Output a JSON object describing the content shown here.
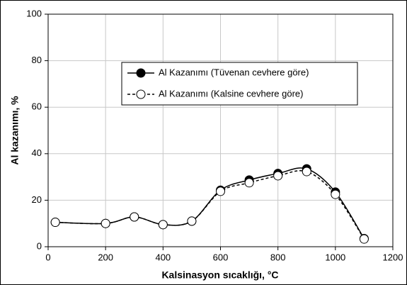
{
  "chart_data": {
    "type": "line",
    "x_label": "Kalsinasyon sıcaklığı, °C",
    "y_label": "Al kazanımı, %",
    "x": [
      25,
      200,
      300,
      400,
      500,
      600,
      700,
      800,
      900,
      1000,
      1100
    ],
    "series": [
      {
        "name": "Al Kazanımı (Tüvenan cevhere göre)",
        "color": "#000000",
        "marker": "filled",
        "dashed": false,
        "values": [
          10.5,
          10,
          12.8,
          9.5,
          11,
          24.3,
          28.7,
          31.5,
          33.5,
          23.5,
          3.5
        ]
      },
      {
        "name": "Al Kazanımı (Kalsine cevhere göre)",
        "color": "#000000",
        "marker": "open",
        "dashed": true,
        "values": [
          10.5,
          10,
          12.8,
          9.5,
          11,
          23.8,
          27.5,
          30.5,
          32.3,
          22.5,
          3.3
        ]
      }
    ],
    "xlim": [
      0,
      1200
    ],
    "xticks": [
      0,
      200,
      400,
      600,
      800,
      1000,
      1200
    ],
    "ylim": [
      0,
      100
    ],
    "yticks": [
      0,
      20,
      40,
      60,
      80,
      100
    ],
    "grid": true,
    "legend_position": "upper-center"
  }
}
